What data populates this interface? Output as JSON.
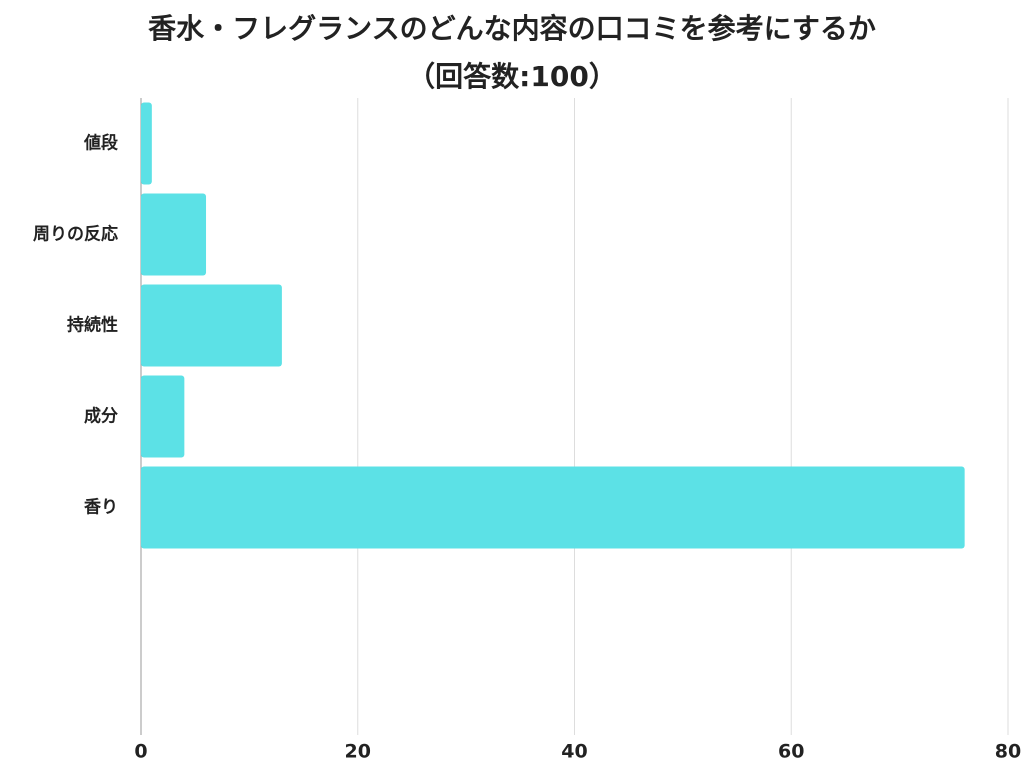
{
  "chart_data": {
    "type": "barh",
    "title": "香水・フレグランスのどんな内容の口コミを参考にするか",
    "subtitle": "（回答数:100）",
    "categories": [
      "値段",
      "周りの反応",
      "持続性",
      "成分",
      "香り"
    ],
    "values": [
      1,
      6,
      13,
      4,
      76
    ],
    "color": "#5ce1e6",
    "xlim": [
      0,
      80
    ],
    "xticks": [
      0,
      20,
      40,
      60,
      80
    ],
    "grid": true
  }
}
